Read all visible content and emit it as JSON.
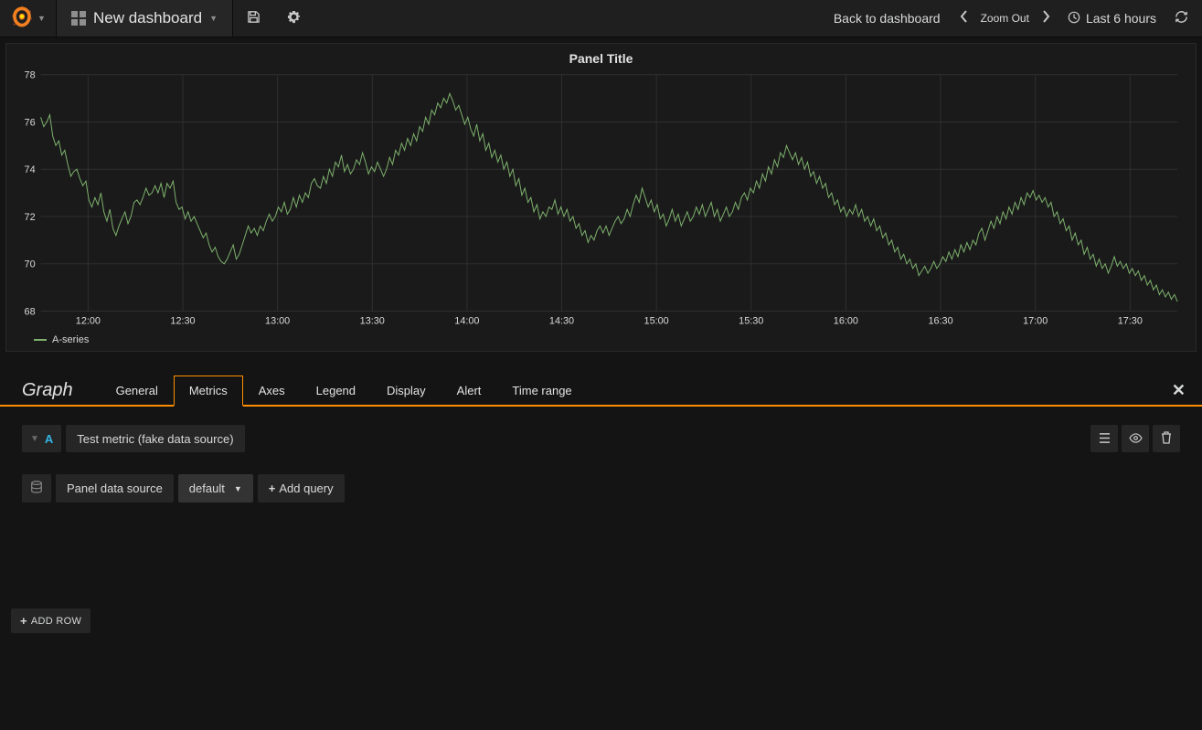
{
  "navbar": {
    "dashboard_title": "New dashboard",
    "back_link": "Back to dashboard",
    "zoom_out_label": "Zoom Out",
    "time_range_label": "Last 6 hours"
  },
  "panel": {
    "title": "Panel Title"
  },
  "chart": {
    "type": "line",
    "series_name": "A-series",
    "line_color": "#7eb26d",
    "line_width": 1,
    "background_color": "#1a1a1a",
    "grid_color": "#2f2f2f",
    "axis_label_color": "#d8d9da",
    "axis_font_size": 11,
    "y": {
      "min": 68,
      "max": 78,
      "ticks": [
        68,
        70,
        72,
        74,
        76,
        78
      ]
    },
    "x": {
      "labels": [
        "12:00",
        "12:30",
        "13:00",
        "13:30",
        "14:00",
        "14:30",
        "15:00",
        "15:30",
        "16:00",
        "16:30",
        "17:00",
        "17:30"
      ]
    },
    "values": [
      76.2,
      75.8,
      76.0,
      76.3,
      75.4,
      75.0,
      75.2,
      74.6,
      74.8,
      74.2,
      73.7,
      73.9,
      74.0,
      73.6,
      73.3,
      73.5,
      72.7,
      72.4,
      72.8,
      72.5,
      73.0,
      72.2,
      71.8,
      72.3,
      71.5,
      71.2,
      71.6,
      71.9,
      72.2,
      71.7,
      72.0,
      72.6,
      72.7,
      72.5,
      72.8,
      73.2,
      72.9,
      73.0,
      73.3,
      73.0,
      73.4,
      72.8,
      73.4,
      73.2,
      73.5,
      72.6,
      72.3,
      72.4,
      71.9,
      72.2,
      71.8,
      72.0,
      71.7,
      71.4,
      71.1,
      71.3,
      70.8,
      70.5,
      70.7,
      70.3,
      70.1,
      70.0,
      70.2,
      70.5,
      70.8,
      70.2,
      70.4,
      70.8,
      71.2,
      71.6,
      71.3,
      71.5,
      71.2,
      71.6,
      71.4,
      71.8,
      72.1,
      71.8,
      72.0,
      72.4,
      72.2,
      72.6,
      72.1,
      72.3,
      72.8,
      72.4,
      72.9,
      72.6,
      73.0,
      72.8,
      73.4,
      73.6,
      73.3,
      73.2,
      73.7,
      73.4,
      74.0,
      73.7,
      74.3,
      74.1,
      74.6,
      73.9,
      74.2,
      73.8,
      74.0,
      74.4,
      74.2,
      74.7,
      74.3,
      73.8,
      74.1,
      73.9,
      74.3,
      74.0,
      73.7,
      74.0,
      74.5,
      74.2,
      74.8,
      74.6,
      75.1,
      74.8,
      75.3,
      75.0,
      75.5,
      75.2,
      75.8,
      75.6,
      76.2,
      75.9,
      76.5,
      76.3,
      76.8,
      76.6,
      77.0,
      76.8,
      77.2,
      76.9,
      76.5,
      76.7,
      76.3,
      75.9,
      76.2,
      75.7,
      75.4,
      75.9,
      75.2,
      75.5,
      74.8,
      75.1,
      74.5,
      74.8,
      74.3,
      74.6,
      74.0,
      74.3,
      73.7,
      74.0,
      73.3,
      73.6,
      72.9,
      73.2,
      72.6,
      72.8,
      72.2,
      72.5,
      71.9,
      72.2,
      72.0,
      72.4,
      72.3,
      72.7,
      72.1,
      72.4,
      72.0,
      72.3,
      71.8,
      72.0,
      71.5,
      71.7,
      71.2,
      71.4,
      70.9,
      71.2,
      71.0,
      71.4,
      71.6,
      71.3,
      71.6,
      71.2,
      71.5,
      71.8,
      72.0,
      71.7,
      71.9,
      72.3,
      72.0,
      72.5,
      72.9,
      72.6,
      73.2,
      72.8,
      72.4,
      72.7,
      72.2,
      72.5,
      71.9,
      72.1,
      71.6,
      71.9,
      72.3,
      71.8,
      72.1,
      71.6,
      71.9,
      72.2,
      71.8,
      72.0,
      72.4,
      72.1,
      72.5,
      72.0,
      72.3,
      72.6,
      72.0,
      72.3,
      71.8,
      72.1,
      72.4,
      72.0,
      72.2,
      72.6,
      72.3,
      72.8,
      73.0,
      72.7,
      73.2,
      73.0,
      73.5,
      73.2,
      73.8,
      73.5,
      74.1,
      73.8,
      74.4,
      74.1,
      74.7,
      74.5,
      75.0,
      74.7,
      74.4,
      74.7,
      74.2,
      74.5,
      74.0,
      74.3,
      73.7,
      73.9,
      73.4,
      73.7,
      73.2,
      73.4,
      72.8,
      73.0,
      72.5,
      72.7,
      72.2,
      72.4,
      72.0,
      72.3,
      72.1,
      72.5,
      72.0,
      72.3,
      71.8,
      72.0,
      71.6,
      71.9,
      71.4,
      71.6,
      71.1,
      71.3,
      70.8,
      71.0,
      70.5,
      70.7,
      70.2,
      70.4,
      70.0,
      70.2,
      69.8,
      70.0,
      69.5,
      69.7,
      69.9,
      69.6,
      69.8,
      70.1,
      69.8,
      70.0,
      70.3,
      70.1,
      70.5,
      70.2,
      70.6,
      70.3,
      70.8,
      70.5,
      70.9,
      70.6,
      71.0,
      70.8,
      71.3,
      71.5,
      71.0,
      71.4,
      71.8,
      71.5,
      72.0,
      71.7,
      72.2,
      71.9,
      72.4,
      72.1,
      72.6,
      72.3,
      72.8,
      72.5,
      73.0,
      72.8,
      73.1,
      72.7,
      72.9,
      72.6,
      72.8,
      72.4,
      72.6,
      72.0,
      72.2,
      71.7,
      71.9,
      71.4,
      71.6,
      71.0,
      71.3,
      70.8,
      71.0,
      70.4,
      70.7,
      70.2,
      70.4,
      69.9,
      70.2,
      69.8,
      70.0,
      69.6,
      69.9,
      70.3,
      69.9,
      70.1,
      69.8,
      70.0,
      69.6,
      69.8,
      69.5,
      69.7,
      69.3,
      69.5,
      69.1,
      69.3,
      68.9,
      69.1,
      68.7,
      68.9,
      68.6,
      68.8,
      68.5,
      68.7,
      68.4
    ]
  },
  "editor": {
    "panel_type": "Graph",
    "tabs": [
      "General",
      "Metrics",
      "Axes",
      "Legend",
      "Display",
      "Alert",
      "Time range"
    ],
    "active_tab_index": 1,
    "query": {
      "letter": "A",
      "label": "Test metric (fake data source)"
    },
    "datasource": {
      "label": "Panel data source",
      "selected": "default",
      "add_query_label": "Add query"
    }
  },
  "add_row": {
    "label": "ADD ROW"
  }
}
